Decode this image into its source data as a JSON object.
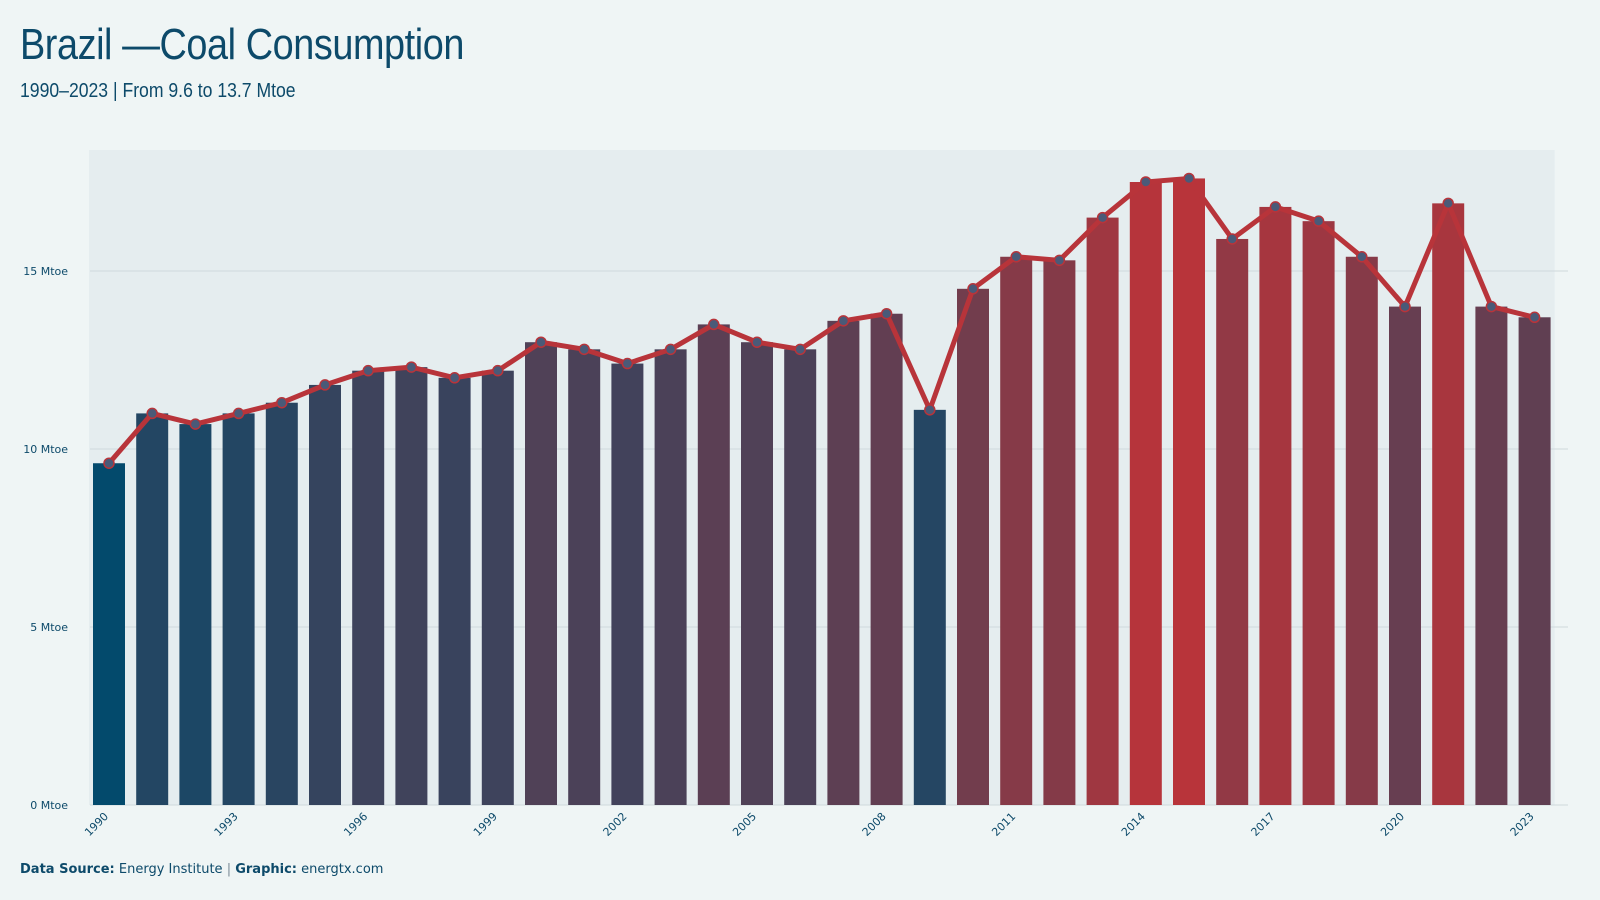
{
  "header": {
    "title": "Brazil —Coal Consumption",
    "subtitle": "1990–2023 | From 9.6 to 13.7 Mtoe"
  },
  "footer": {
    "source_label": "Data Source:",
    "source_value": "Energy Institute",
    "separator": "|",
    "graphic_label": "Graphic:",
    "graphic_value": "energtx.com"
  },
  "colors": {
    "background": "#eff5f5",
    "plot_panel": "#dce6e9",
    "low": "#034a6c",
    "high": "#b8343a",
    "line": "#b8343a",
    "point_fill": "#4a5a78",
    "text": "#0d4a6a",
    "grid": "#cfd9dc"
  },
  "chart_data": {
    "type": "bar",
    "title": "Brazil —Coal Consumption",
    "subtitle": "1990–2023 | From 9.6 to 13.7 Mtoe",
    "xlabel": "",
    "ylabel": "",
    "x": [
      1990,
      1991,
      1992,
      1993,
      1994,
      1995,
      1996,
      1997,
      1998,
      1999,
      2000,
      2001,
      2002,
      2003,
      2004,
      2005,
      2006,
      2007,
      2008,
      2009,
      2010,
      2011,
      2012,
      2013,
      2014,
      2015,
      2016,
      2017,
      2018,
      2019,
      2020,
      2021,
      2022,
      2023
    ],
    "values": [
      9.6,
      11.0,
      10.7,
      11.0,
      11.3,
      11.8,
      12.2,
      12.3,
      12.0,
      12.2,
      13.0,
      12.8,
      12.4,
      12.8,
      13.5,
      13.0,
      12.8,
      13.6,
      13.8,
      11.1,
      14.5,
      15.4,
      15.3,
      16.5,
      17.5,
      17.6,
      15.9,
      16.8,
      16.4,
      15.4,
      14.0,
      16.9,
      14.0,
      13.7
    ],
    "overlay": "line with points",
    "ylim": [
      0,
      20
    ],
    "y_ticks": [
      {
        "value": 0,
        "label": "0 Mtoe"
      },
      {
        "value": 5,
        "label": "5 Mtoe"
      },
      {
        "value": 10,
        "label": "10 Mtoe"
      },
      {
        "value": 15,
        "label": "15 Mtoe"
      }
    ],
    "x_tick_labels": [
      "1990",
      "1993",
      "1996",
      "1999",
      "2002",
      "2005",
      "2008",
      "2011",
      "2014",
      "2017",
      "2020",
      "2023"
    ],
    "grid": "horizontal",
    "legend": "none"
  }
}
